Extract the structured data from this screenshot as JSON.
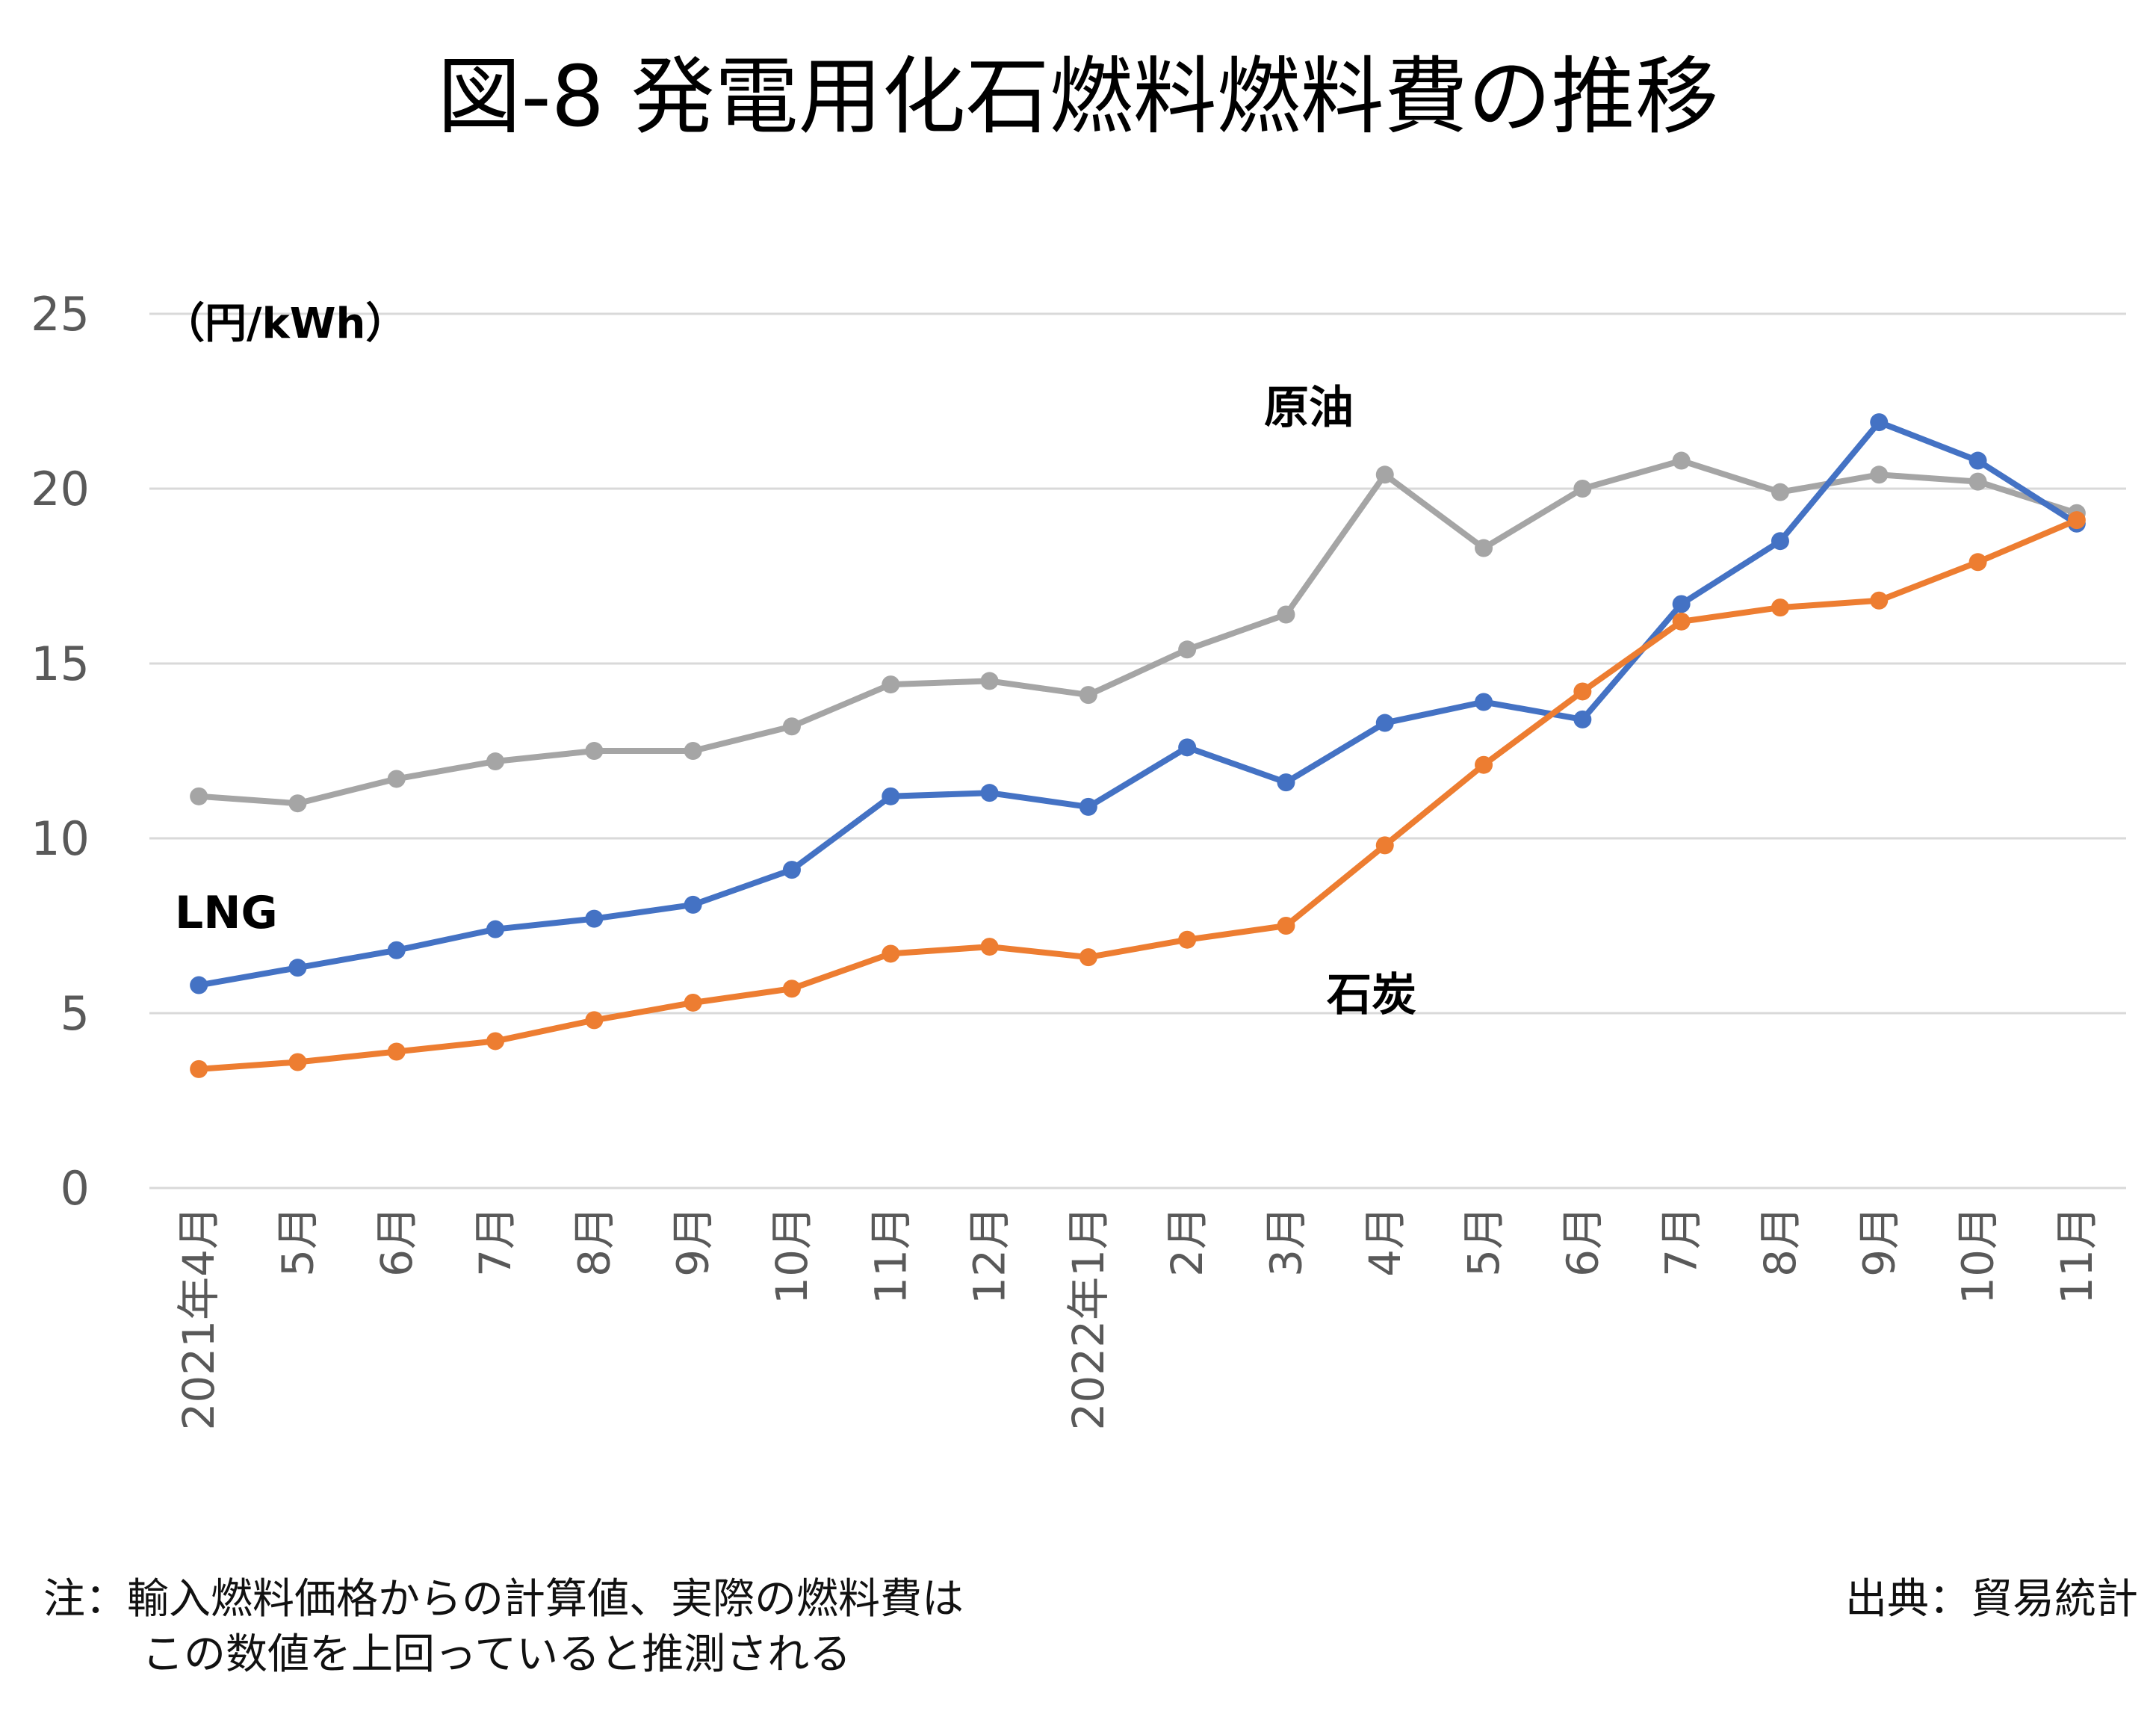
{
  "title": "図-8 発電用化石燃料燃料費の推移",
  "unit_label": "（円/kWh）",
  "note": {
    "line1": "注：輸入燃料価格からの計算値、実際の燃料費は",
    "line2": "この数値を上回っていると推測される"
  },
  "source": "出典：貿易統計",
  "colors": {
    "LNG": "#4472c4",
    "石炭": "#ed7d31",
    "原油": "#a5a5a5",
    "grid": "#d9d9d9",
    "axis_text": "#595959"
  },
  "chart_data": {
    "type": "line",
    "title": "図-8 発電用化石燃料燃料費の推移",
    "ylabel": "（円/kWh）",
    "xlabel": "",
    "ylim": [
      0,
      25
    ],
    "yticks": [
      0,
      5,
      10,
      15,
      20,
      25
    ],
    "grid": true,
    "legend": "inline labels",
    "categories": [
      "2021年4月",
      "5月",
      "6月",
      "7月",
      "8月",
      "9月",
      "10月",
      "11月",
      "12月",
      "2022年1月",
      "2月",
      "3月",
      "4月",
      "5月",
      "6月",
      "7月",
      "8月",
      "9月",
      "10月",
      "11月"
    ],
    "series": [
      {
        "name": "原油",
        "color": "#a5a5a5",
        "values": [
          11.2,
          11.0,
          11.7,
          12.2,
          12.5,
          12.5,
          13.2,
          14.4,
          14.5,
          14.1,
          15.4,
          16.4,
          20.4,
          18.3,
          20.0,
          20.8,
          19.9,
          20.4,
          20.2,
          19.3
        ]
      },
      {
        "name": "LNG",
        "color": "#4472c4",
        "values": [
          5.8,
          6.3,
          6.8,
          7.4,
          7.7,
          8.1,
          9.1,
          11.2,
          11.3,
          10.9,
          12.6,
          11.6,
          13.3,
          13.9,
          13.4,
          16.7,
          18.5,
          21.9,
          20.8,
          19.0
        ]
      },
      {
        "name": "石炭",
        "color": "#ed7d31",
        "values": [
          3.4,
          3.6,
          3.9,
          4.2,
          4.8,
          5.3,
          5.7,
          6.7,
          6.9,
          6.6,
          7.1,
          7.5,
          9.8,
          12.1,
          14.2,
          16.2,
          16.6,
          16.8,
          17.9,
          19.1
        ]
      }
    ]
  }
}
